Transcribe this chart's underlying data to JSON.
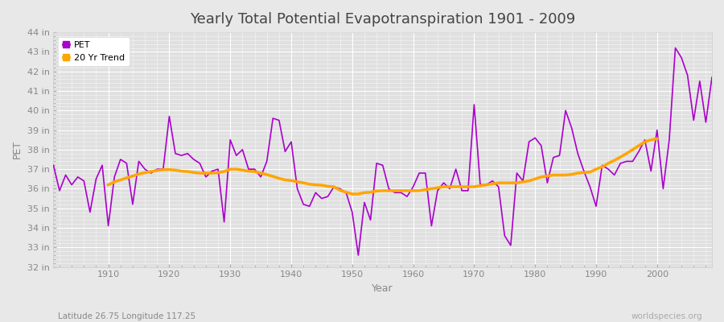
{
  "title": "Yearly Total Potential Evapotranspiration 1901 - 2009",
  "xlabel": "Year",
  "ylabel": "PET",
  "subtitle_left": "Latitude 26.75 Longitude 117.25",
  "subtitle_right": "worldspecies.org",
  "ylim": [
    32,
    44
  ],
  "pet_color": "#aa00cc",
  "trend_color": "#FFA500",
  "fig_bg_color": "#e8e8e8",
  "plot_bg_color": "#e0e0e0",
  "years": [
    1901,
    1902,
    1903,
    1904,
    1905,
    1906,
    1907,
    1908,
    1909,
    1910,
    1911,
    1912,
    1913,
    1914,
    1915,
    1916,
    1917,
    1918,
    1919,
    1920,
    1921,
    1922,
    1923,
    1924,
    1925,
    1926,
    1927,
    1928,
    1929,
    1930,
    1931,
    1932,
    1933,
    1934,
    1935,
    1936,
    1937,
    1938,
    1939,
    1940,
    1941,
    1942,
    1943,
    1944,
    1945,
    1946,
    1947,
    1948,
    1949,
    1950,
    1951,
    1952,
    1953,
    1954,
    1955,
    1956,
    1957,
    1958,
    1959,
    1960,
    1961,
    1962,
    1963,
    1964,
    1965,
    1966,
    1967,
    1968,
    1969,
    1970,
    1971,
    1972,
    1973,
    1974,
    1975,
    1976,
    1977,
    1978,
    1979,
    1980,
    1981,
    1982,
    1983,
    1984,
    1985,
    1986,
    1987,
    1988,
    1989,
    1990,
    1991,
    1992,
    1993,
    1994,
    1995,
    1996,
    1997,
    1998,
    1999,
    2000,
    2001,
    2002,
    2003,
    2004,
    2005,
    2006,
    2007,
    2008,
    2009
  ],
  "pet_values": [
    37.2,
    35.9,
    36.7,
    36.2,
    36.6,
    36.4,
    34.8,
    36.5,
    37.2,
    34.1,
    36.6,
    37.5,
    37.3,
    35.2,
    37.4,
    37.0,
    36.8,
    37.0,
    37.0,
    39.7,
    37.8,
    37.7,
    37.8,
    37.5,
    37.3,
    36.6,
    36.9,
    37.0,
    34.3,
    38.5,
    37.7,
    38.0,
    37.0,
    37.0,
    36.6,
    37.4,
    39.6,
    39.5,
    37.9,
    38.4,
    36.0,
    35.2,
    35.1,
    35.8,
    35.5,
    35.6,
    36.1,
    36.0,
    35.8,
    34.8,
    32.6,
    35.3,
    34.4,
    37.3,
    37.2,
    36.0,
    35.8,
    35.8,
    35.6,
    36.1,
    36.8,
    36.8,
    34.1,
    35.9,
    36.3,
    36.0,
    37.0,
    35.9,
    35.9,
    40.3,
    36.2,
    36.2,
    36.4,
    36.1,
    33.6,
    33.1,
    36.8,
    36.4,
    38.4,
    38.6,
    38.2,
    36.3,
    37.6,
    37.7,
    40.0,
    39.1,
    37.8,
    36.9,
    36.1,
    35.1,
    37.2,
    37.0,
    36.7,
    37.3,
    37.4,
    37.4,
    37.9,
    38.5,
    36.9,
    39.0,
    36.0,
    38.5,
    43.2,
    42.7,
    41.8,
    39.5,
    41.5,
    39.4,
    41.7
  ],
  "trend_years": [
    1910,
    1911,
    1912,
    1913,
    1914,
    1915,
    1916,
    1917,
    1918,
    1919,
    1920,
    1921,
    1922,
    1923,
    1924,
    1925,
    1926,
    1927,
    1928,
    1929,
    1930,
    1931,
    1932,
    1933,
    1934,
    1935,
    1936,
    1937,
    1938,
    1939,
    1940,
    1941,
    1942,
    1943,
    1944,
    1945,
    1946,
    1947,
    1948,
    1949,
    1950,
    1951,
    1952,
    1953,
    1954,
    1955,
    1956,
    1957,
    1958,
    1959,
    1960,
    1961,
    1962,
    1963,
    1964,
    1965,
    1966,
    1967,
    1968,
    1969,
    1970,
    1971,
    1972,
    1973,
    1974,
    1975,
    1976,
    1977,
    1978,
    1979,
    1980,
    1981,
    1982,
    1983,
    1984,
    1985,
    1986,
    1987,
    1988,
    1989,
    1990,
    1991,
    1992,
    1993,
    1994,
    1995,
    1996,
    1997,
    1998,
    1999,
    2000
  ],
  "trend_values": [
    36.2,
    36.35,
    36.45,
    36.55,
    36.65,
    36.75,
    36.82,
    36.88,
    36.93,
    36.97,
    36.98,
    36.95,
    36.9,
    36.88,
    36.83,
    36.8,
    36.8,
    36.8,
    36.82,
    36.88,
    37.0,
    37.0,
    36.95,
    36.9,
    36.88,
    36.8,
    36.72,
    36.63,
    36.53,
    36.45,
    36.42,
    36.35,
    36.3,
    36.23,
    36.2,
    36.18,
    36.12,
    36.1,
    35.92,
    35.82,
    35.73,
    35.73,
    35.8,
    35.82,
    35.88,
    35.9,
    35.9,
    35.9,
    35.9,
    35.9,
    35.9,
    35.9,
    35.95,
    36.0,
    36.05,
    36.1,
    36.1,
    36.1,
    36.1,
    36.1,
    36.1,
    36.15,
    36.2,
    36.25,
    36.3,
    36.3,
    36.3,
    36.3,
    36.35,
    36.4,
    36.5,
    36.6,
    36.65,
    36.7,
    36.7,
    36.7,
    36.73,
    36.8,
    36.83,
    36.85,
    37.0,
    37.12,
    37.3,
    37.45,
    37.62,
    37.8,
    38.0,
    38.2,
    38.4,
    38.5,
    38.55
  ]
}
